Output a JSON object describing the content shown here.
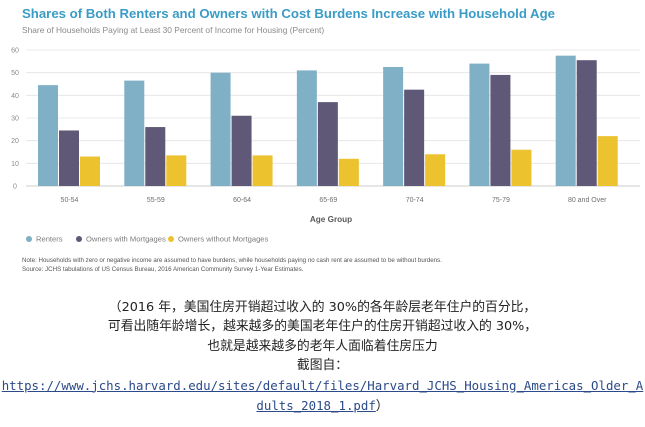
{
  "chart_data": {
    "type": "bar",
    "title": "Shares of Both Renters and Owners with Cost Burdens Increase with Household Age",
    "subtitle": "Share of Households Paying at Least 30 Percent of Income for Housing (Percent)",
    "xlabel": "Age Group",
    "ylabel": "",
    "ylim": [
      0,
      60
    ],
    "yticks": [
      0,
      10,
      20,
      30,
      40,
      50,
      60
    ],
    "grid": true,
    "legend_placement": "bottom-left",
    "categories": [
      "50-54",
      "55-59",
      "60-64",
      "65-69",
      "70-74",
      "75-79",
      "80 and Over"
    ],
    "series": [
      {
        "name": "Renters",
        "color": "#7fb0c6",
        "values": [
          44.5,
          46.5,
          50,
          51,
          52.5,
          54,
          57.5
        ]
      },
      {
        "name": "Owners with Mortgages",
        "color": "#5f5876",
        "values": [
          24.5,
          26,
          31,
          37,
          42.5,
          49,
          55.5
        ]
      },
      {
        "name": "Owners without Mortgages",
        "color": "#ecc22f",
        "values": [
          13,
          13.5,
          13.5,
          12,
          14,
          16,
          22
        ]
      }
    ]
  },
  "notes": {
    "note": "Note: Households with zero or negative income are assumed to have burdens, while households paying no cash rent are assumed to be without burdens.",
    "source": "Source: JCHS tabulations of US Census Bureau, 2016 American Community Survey 1-Year Estimates."
  },
  "caption": {
    "line1": "（2016 年，美国住房开销超过收入的 30%的各年龄层老年住户的百分比，",
    "line2": "可看出随年龄增长，越来越多的美国老年住户的住房开销超过收入的 30%，",
    "line3": "也就是越来越多的老年人面临着住房压力",
    "line4": "截图自：",
    "link_line1": "https://www.jchs.harvard.edu/sites/default/files/Harvard_JCHS_Housing_Americas_Older_A",
    "link_line2": "dults_2018_1.pdf",
    "link_tail": "）"
  }
}
